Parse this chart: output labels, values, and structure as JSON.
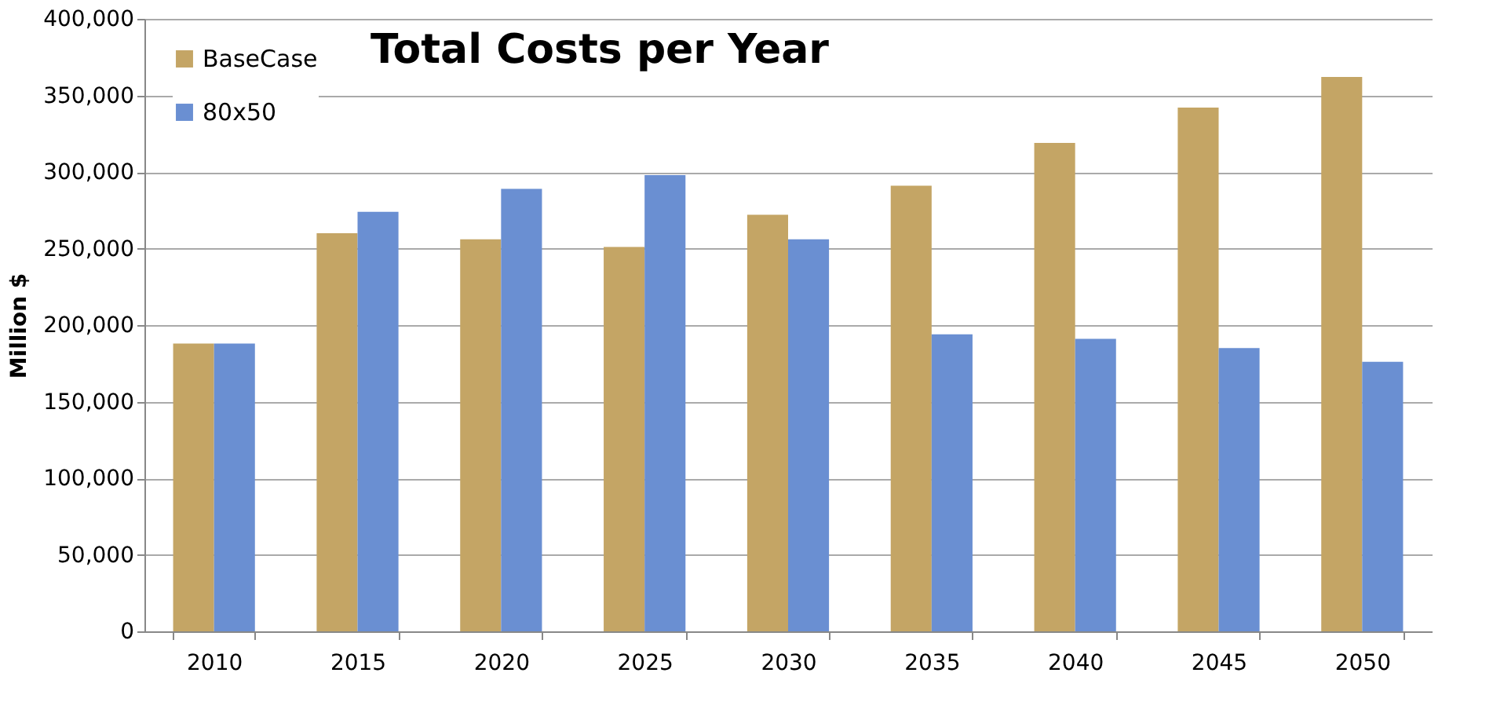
{
  "chart_data": {
    "type": "bar",
    "title": "Total Costs per Year",
    "ylabel": "Million $",
    "categories": [
      "2010",
      "2015",
      "2020",
      "2025",
      "2030",
      "2035",
      "2040",
      "2045",
      "2050"
    ],
    "series": [
      {
        "name": "BaseCase",
        "color": "#c4a565",
        "values": [
          188000,
          260000,
          256000,
          251000,
          272000,
          291000,
          319000,
          342000,
          362000
        ]
      },
      {
        "name": "80x50",
        "color": "#6a8fd2",
        "values": [
          188000,
          274000,
          289000,
          298000,
          256000,
          194000,
          191000,
          185000,
          176000
        ]
      }
    ],
    "ylim": [
      0,
      400000
    ],
    "yticks": [
      0,
      {
        "value": 50000,
        "label": "50,000"
      },
      {
        "value": 100000,
        "label": "100,000"
      },
      {
        "value": 150000,
        "label": "150,000"
      },
      {
        "value": 200000,
        "label": "200,000"
      },
      {
        "value": 250000,
        "label": "250,000"
      },
      {
        "value": 300000,
        "label": "300,000"
      },
      {
        "value": 350000,
        "label": "350,000"
      },
      {
        "value": 400000,
        "label": "400,000"
      }
    ],
    "grid": "y",
    "legend": "top left"
  }
}
